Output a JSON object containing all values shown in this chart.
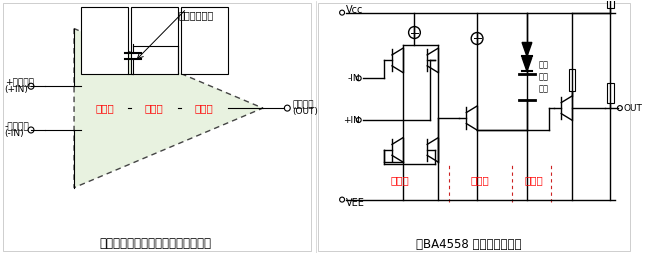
{
  "bg_color": "#ffffff",
  "triangle_fill": "#e8f2e0",
  "red_text": "#ff0000",
  "black": "#000000",
  "dashed_color": "#555555",
  "title_left": "『普通运算放大器的内部电路结构』",
  "title_right": "『BA4558 内部等效电路』",
  "label_input": "输人段",
  "label_gain": "增益段",
  "label_output": "输出段",
  "label_phase_cap_left": "相位补偿电容",
  "label_phase_cap_r1": "相位",
  "label_phase_cap_r2": "补偿",
  "label_phase_cap_r3": "电容",
  "label_plus_in_1": "+输人引脚",
  "label_plus_in_2": "(+IN)",
  "label_minus_in_1": "-输人引脚",
  "label_minus_in_2": "(-IN)",
  "label_out_pin_1": "输出引脚",
  "label_out_pin_2": "(OUT)",
  "label_vcc": "Vcc",
  "label_vee": "VEE",
  "label_nin": "-IN",
  "label_pin": "+IN",
  "label_out": "OUT",
  "font_size_title": 8.5,
  "font_size_label": 6.5,
  "font_size_stage": 7.5,
  "font_size_pin": 6.5
}
